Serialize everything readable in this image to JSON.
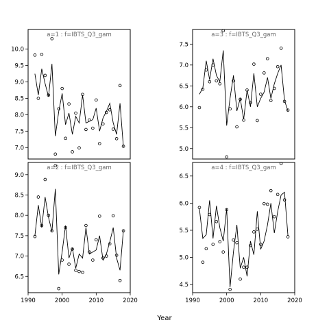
{
  "chart_data": {
    "type": "line",
    "xlabel": "Year",
    "xticks": [
      1990,
      2000,
      2010,
      2020
    ],
    "panels": [
      {
        "title": "a=1  :  f=IBTS_Q3_gam",
        "xlim": [
          1990,
          2020
        ],
        "ylim": [
          6.65,
          10.6
        ],
        "yticks": [
          7.0,
          7.5,
          8.0,
          8.5,
          9.0,
          9.5,
          10.0
        ],
        "ytick_labels": [
          "7.0",
          "7.5",
          "8.0",
          "8.5",
          "9.0",
          "9.5",
          "10.0"
        ],
        "fitted": {
          "x": [
            1992,
            1993,
            1994,
            1995,
            1996,
            1997,
            1998,
            1999,
            2000,
            2001,
            2002,
            2003,
            2004,
            2005,
            2006,
            2007,
            2008,
            2009,
            2010,
            2011,
            2012,
            2013,
            2014,
            2015,
            2016,
            2017,
            2018
          ],
          "y": [
            9.25,
            8.6,
            9.4,
            8.95,
            8.55,
            9.55,
            7.35,
            8.1,
            8.65,
            7.7,
            8.05,
            7.4,
            7.95,
            7.75,
            8.6,
            7.75,
            7.8,
            7.85,
            8.2,
            7.5,
            7.9,
            8.1,
            8.35,
            7.75,
            7.4,
            8.35,
            7.0
          ]
        },
        "observed": {
          "x": [
            1992,
            1993,
            1994,
            1995,
            1996,
            1997,
            1998,
            1999,
            2000,
            2001,
            2002,
            2003,
            2004,
            2005,
            2006,
            2007,
            2008,
            2009,
            2010,
            2011,
            2012,
            2013,
            2014,
            2015,
            2016,
            2017,
            2018
          ],
          "y": [
            9.82,
            8.5,
            9.84,
            9.2,
            8.6,
            10.32,
            6.8,
            8.18,
            8.8,
            7.28,
            8.33,
            6.87,
            8.05,
            6.99,
            8.62,
            7.55,
            7.84,
            7.59,
            8.45,
            7.12,
            7.72,
            8.07,
            8.15,
            7.56,
            7.27,
            8.89,
            7.04
          ]
        }
      },
      {
        "title": "a=3  :  f=IBTS_Q3_gam",
        "xlim": [
          1990,
          2020
        ],
        "ylim": [
          4.75,
          7.85
        ],
        "yticks": [
          5.0,
          5.5,
          6.0,
          6.5,
          7.0,
          7.5
        ],
        "ytick_labels": [
          "5.0",
          "5.5",
          "6.0",
          "6.5",
          "7.0",
          "7.5"
        ],
        "fitted": {
          "x": [
            1992,
            1993,
            1994,
            1995,
            1996,
            1997,
            1998,
            1999,
            2000,
            2001,
            2002,
            2003,
            2004,
            2005,
            2006,
            2007,
            2008,
            2009,
            2010,
            2011,
            2012,
            2013,
            2014,
            2015,
            2016,
            2017,
            2018
          ],
          "y": [
            6.3,
            6.45,
            7.1,
            6.65,
            7.15,
            6.75,
            6.6,
            7.35,
            5.55,
            6.2,
            6.75,
            5.9,
            6.2,
            5.7,
            6.4,
            6.0,
            6.8,
            6.0,
            6.2,
            6.35,
            6.7,
            6.2,
            6.55,
            6.8,
            7.0,
            6.15,
            5.9
          ]
        },
        "observed": {
          "x": [
            1992,
            1993,
            1994,
            1995,
            1996,
            1997,
            1998,
            1999,
            2000,
            2001,
            2002,
            2003,
            2004,
            2005,
            2006,
            2007,
            2008,
            2009,
            2010,
            2011,
            2012,
            2013,
            2014,
            2015,
            2016,
            2017,
            2018
          ],
          "y": [
            5.98,
            6.42,
            6.88,
            6.6,
            7.0,
            6.62,
            6.55,
            7.82,
            4.8,
            5.95,
            6.62,
            5.52,
            6.18,
            5.68,
            6.4,
            6.1,
            7.02,
            5.67,
            6.3,
            6.81,
            7.15,
            6.15,
            6.44,
            6.96,
            7.4,
            6.13,
            5.92
          ]
        }
      },
      {
        "title": "a=2  :  f=IBTS_Q3_gam",
        "xlim": [
          1990,
          2020
        ],
        "ylim": [
          6.1,
          9.3
        ],
        "yticks": [
          6.5,
          7.0,
          7.5,
          8.0,
          8.5,
          9.0
        ],
        "ytick_labels": [
          "6.5",
          "7.0",
          "7.5",
          "8.0",
          "8.5",
          "9.0"
        ],
        "fitted": {
          "x": [
            1992,
            1993,
            1994,
            1995,
            1996,
            1997,
            1998,
            1999,
            2000,
            2001,
            2002,
            2003,
            2004,
            2005,
            2006,
            2007,
            2008,
            2009,
            2010,
            2011,
            2012,
            2013,
            2014,
            2015,
            2016,
            2017,
            2018
          ],
          "y": [
            7.5,
            8.25,
            7.7,
            8.45,
            7.95,
            7.6,
            8.65,
            6.55,
            7.1,
            7.75,
            6.95,
            7.2,
            6.7,
            7.05,
            6.95,
            7.7,
            7.05,
            7.1,
            7.15,
            7.5,
            6.9,
            7.05,
            7.35,
            7.7,
            6.95,
            6.65,
            7.65
          ]
        },
        "observed": {
          "x": [
            1992,
            1993,
            1994,
            1995,
            1996,
            1997,
            1998,
            1999,
            2000,
            2001,
            2002,
            2003,
            2004,
            2005,
            2006,
            2007,
            2008,
            2009,
            2010,
            2011,
            2012,
            2013,
            2014,
            2015,
            2016,
            2017,
            2018
          ],
          "y": [
            7.48,
            8.45,
            7.75,
            8.88,
            8.0,
            7.62,
            9.22,
            6.2,
            6.9,
            7.7,
            6.8,
            7.17,
            6.65,
            6.62,
            6.6,
            7.75,
            7.1,
            6.9,
            7.4,
            7.98,
            6.95,
            7.0,
            7.3,
            7.99,
            7.02,
            6.4,
            7.62
          ]
        }
      },
      {
        "title": "a=4  :  f=IBTS_Q3_gam",
        "xlim": [
          1990,
          2020
        ],
        "ylim": [
          4.35,
          6.75
        ],
        "yticks": [
          4.5,
          5.0,
          5.5,
          6.0,
          6.5
        ],
        "ytick_labels": [
          "4.5",
          "5.0",
          "5.5",
          "6.0",
          "6.5"
        ],
        "fitted": {
          "x": [
            1992,
            1993,
            1994,
            1995,
            1996,
            1997,
            1998,
            1999,
            2000,
            2001,
            2002,
            2003,
            2004,
            2005,
            2006,
            2007,
            2008,
            2009,
            2010,
            2011,
            2012,
            2013,
            2014,
            2015,
            2016,
            2017,
            2018
          ],
          "y": [
            5.9,
            5.35,
            5.42,
            6.05,
            5.35,
            5.95,
            5.55,
            5.3,
            5.9,
            4.45,
            5.1,
            5.6,
            4.8,
            5.0,
            4.65,
            5.3,
            5.05,
            5.85,
            5.15,
            5.3,
            5.6,
            6.0,
            5.45,
            5.85,
            6.15,
            6.2,
            5.4
          ]
        },
        "observed": {
          "x": [
            1992,
            1993,
            1994,
            1995,
            1996,
            1997,
            1998,
            1999,
            2000,
            2001,
            2002,
            2003,
            2004,
            2005,
            2006,
            2007,
            2008,
            2009,
            2010,
            2011,
            2012,
            2013,
            2014,
            2015,
            2016,
            2017,
            2018
          ],
          "y": [
            5.92,
            4.91,
            5.16,
            5.79,
            5.24,
            5.66,
            5.29,
            5.1,
            5.88,
            4.41,
            5.32,
            5.27,
            4.6,
            4.82,
            4.82,
            5.22,
            5.47,
            5.52,
            5.24,
            5.99,
            5.98,
            6.23,
            5.75,
            6.16,
            6.73,
            6.06,
            5.38
          ]
        }
      }
    ]
  }
}
